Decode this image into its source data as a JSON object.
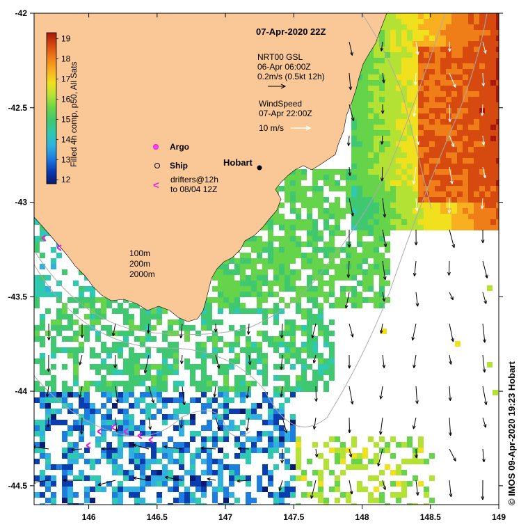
{
  "title": "07-Apr-2020 22Z",
  "colorbar": {
    "label": "Filled 4h comp, p50, All Sats",
    "ticks": [
      "12",
      "13",
      "14",
      "15",
      "16",
      "17",
      "18",
      "19"
    ],
    "stops": [
      "#081a72",
      "#0b3cb0",
      "#1d7de0",
      "#2fb0e0",
      "#2fc8b0",
      "#3fc870",
      "#66d44a",
      "#b4e234",
      "#f0e01e",
      "#f8b020",
      "#f07e18",
      "#d64a10",
      "#a81808"
    ],
    "vmin": 11.8,
    "vmax": 19.3
  },
  "legend": {
    "argo": "Argo",
    "ship": "Ship",
    "drifter_symbol": "<",
    "drifters_line1": "drifters@12h",
    "drifters_line2": "to 08/04 12Z",
    "iso_100": "100m",
    "iso_200": "200m",
    "iso_2000": "2000m"
  },
  "currents": {
    "line1": "NRT00 GSL",
    "line2": "06-Apr 06:00Z",
    "line3": "0.2m/s (0.5kt 12h)"
  },
  "wind": {
    "line1": "WindSpeed",
    "line2": "07-Apr 22:00Z",
    "line3": "10 m/s"
  },
  "place": {
    "name": "Hobart"
  },
  "axes": {
    "x_ticks": [
      "146",
      "146.5",
      "147",
      "147.5",
      "148",
      "148.5",
      "149"
    ],
    "y_ticks": [
      "-42",
      "-42.5",
      "-43",
      "-43.5",
      "-44",
      "-44.5"
    ],
    "lon_range": [
      145.6,
      149.0
    ],
    "lat_range": [
      -44.6,
      -42.0
    ]
  },
  "colors": {
    "land": "#fac896",
    "ocean": "#ffffff",
    "drifter": "#e020e0"
  },
  "credit": "© IMOS 09-Apr-2020 19:23 Hobart"
}
